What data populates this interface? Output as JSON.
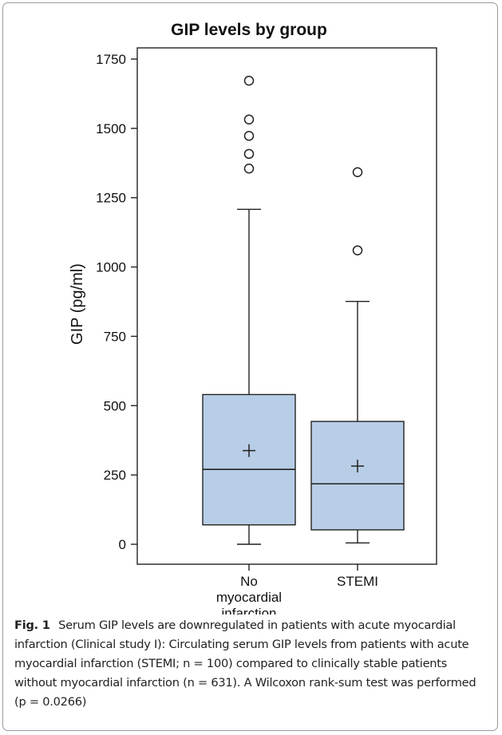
{
  "caption": {
    "label": "Fig. 1",
    "text": "Serum GIP levels are downregulated in patients with acute myocardial infarction (Clinical study I): Circulating serum GIP levels from patients with acute myocardial infarction (STEMI; n = 100) compared to clinically stable patients without myocardial infarction (n = 631). A Wilcoxon rank-sum test was performed (p = 0.0266)"
  },
  "chart_data": {
    "type": "box",
    "title": "GIP levels by group",
    "ylabel": "GIP (pg/ml)",
    "xlabel": "",
    "ylim": [
      0,
      1750
    ],
    "yticks": [
      0,
      250,
      500,
      750,
      1000,
      1250,
      1500,
      1750
    ],
    "grid": false,
    "legend": "none",
    "colors": {
      "box_fill": "#b8cde6",
      "stroke": "#222222"
    },
    "groups": [
      {
        "category": [
          "No",
          "myocardial",
          "infarction"
        ],
        "whisker_low": 0,
        "q1": 70,
        "median": 270,
        "q3": 540,
        "whisker_high": 1208,
        "mean": 338,
        "outliers": [
          1355,
          1408,
          1473,
          1532,
          1672
        ]
      },
      {
        "category": [
          "STEMI"
        ],
        "whisker_low": 5,
        "q1": 52,
        "median": 218,
        "q3": 443,
        "whisker_high": 876,
        "mean": 282,
        "outliers": [
          1060,
          1342
        ]
      }
    ]
  }
}
